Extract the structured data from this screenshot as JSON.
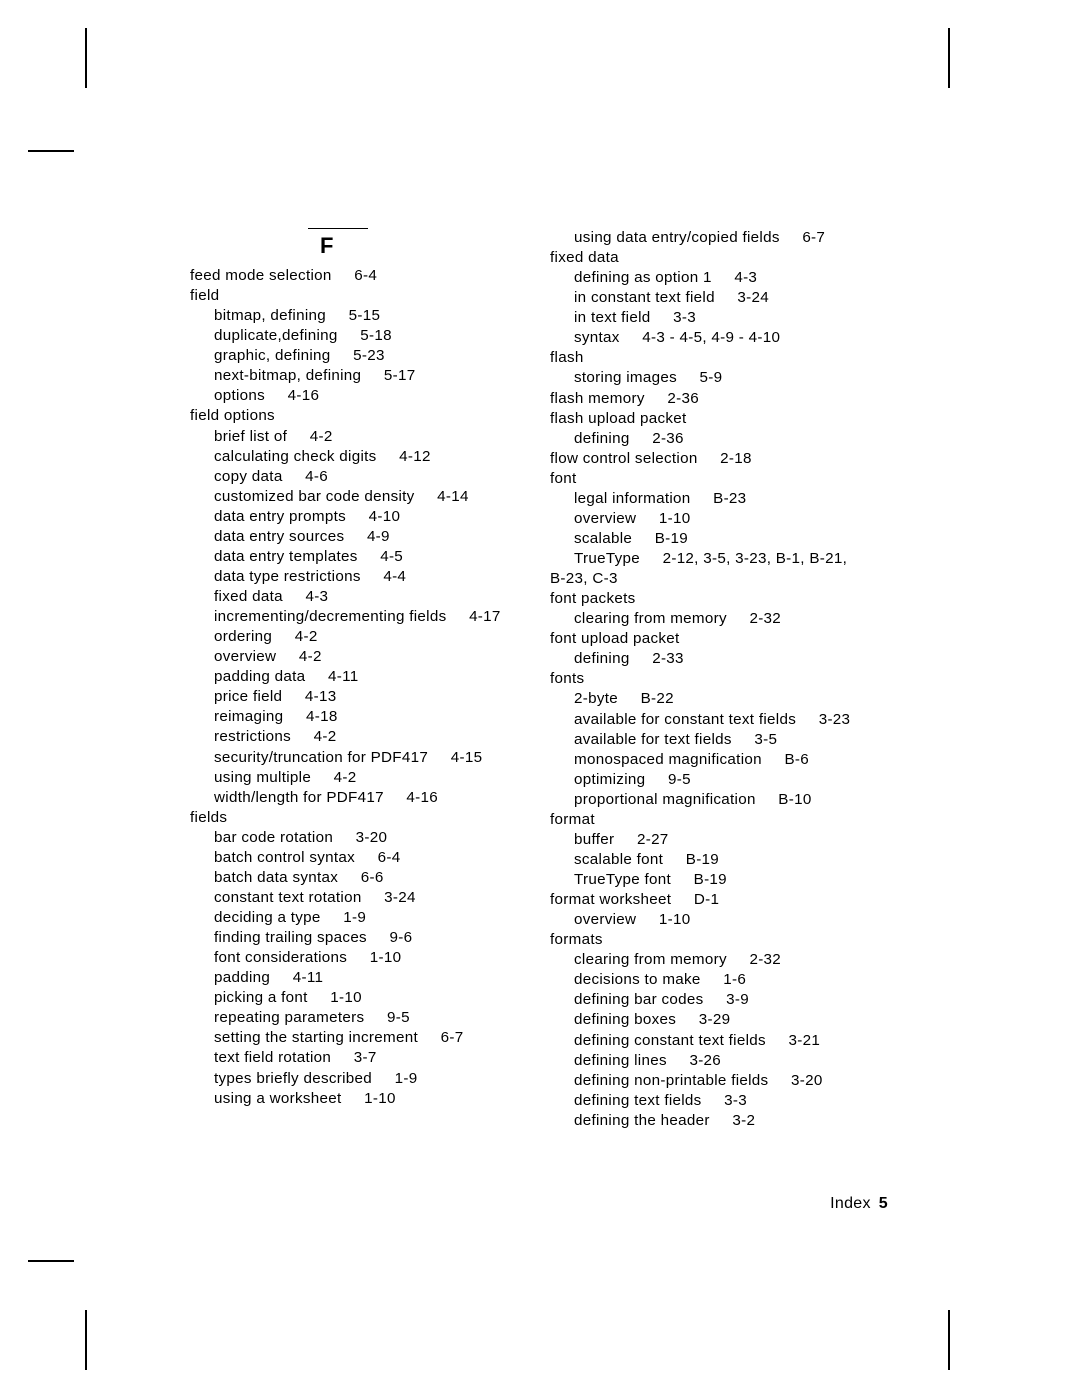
{
  "section_letter": "F",
  "footer": {
    "label": "Index",
    "page": "5"
  },
  "left_column": [
    {
      "lvl": 0,
      "term": "feed mode selection",
      "ref": "6-4"
    },
    {
      "lvl": 0,
      "term": "field",
      "ref": ""
    },
    {
      "lvl": 1,
      "term": "bitmap, defining",
      "ref": "5-15"
    },
    {
      "lvl": 1,
      "term": "duplicate,defining",
      "ref": "5-18"
    },
    {
      "lvl": 1,
      "term": "graphic, defining",
      "ref": "5-23"
    },
    {
      "lvl": 1,
      "term": "next-bitmap, defining",
      "ref": "5-17"
    },
    {
      "lvl": 1,
      "term": "options",
      "ref": "4-16"
    },
    {
      "lvl": 0,
      "term": "field options",
      "ref": ""
    },
    {
      "lvl": 1,
      "term": "brief list of",
      "ref": "4-2"
    },
    {
      "lvl": 1,
      "term": "calculating check digits",
      "ref": "4-12"
    },
    {
      "lvl": 1,
      "term": "copy data",
      "ref": "4-6"
    },
    {
      "lvl": 1,
      "term": "customized bar code density",
      "ref": "4-14"
    },
    {
      "lvl": 1,
      "term": "data entry prompts",
      "ref": "4-10"
    },
    {
      "lvl": 1,
      "term": "data entry sources",
      "ref": "4-9"
    },
    {
      "lvl": 1,
      "term": "data entry templates",
      "ref": "4-5"
    },
    {
      "lvl": 1,
      "term": "data type restrictions",
      "ref": "4-4"
    },
    {
      "lvl": 1,
      "term": "fixed data",
      "ref": "4-3"
    },
    {
      "lvl": 1,
      "term": "incrementing/decrementing fields",
      "ref": "4-17"
    },
    {
      "lvl": 1,
      "term": "ordering",
      "ref": "4-2"
    },
    {
      "lvl": 1,
      "term": "overview",
      "ref": "4-2"
    },
    {
      "lvl": 1,
      "term": "padding data",
      "ref": "4-11"
    },
    {
      "lvl": 1,
      "term": "price field",
      "ref": "4-13"
    },
    {
      "lvl": 1,
      "term": "reimaging",
      "ref": "4-18"
    },
    {
      "lvl": 1,
      "term": "restrictions",
      "ref": "4-2"
    },
    {
      "lvl": 1,
      "term": "security/truncation for PDF417",
      "ref": "4-15"
    },
    {
      "lvl": 1,
      "term": "using multiple",
      "ref": "4-2"
    },
    {
      "lvl": 1,
      "term": "width/length for PDF417",
      "ref": "4-16"
    },
    {
      "lvl": 0,
      "term": "fields",
      "ref": ""
    },
    {
      "lvl": 1,
      "term": "bar code rotation",
      "ref": "3-20"
    },
    {
      "lvl": 1,
      "term": "batch control syntax",
      "ref": "6-4"
    },
    {
      "lvl": 1,
      "term": "batch data syntax",
      "ref": "6-6"
    },
    {
      "lvl": 1,
      "term": "constant text rotation",
      "ref": "3-24"
    },
    {
      "lvl": 1,
      "term": "deciding a type",
      "ref": "1-9"
    },
    {
      "lvl": 1,
      "term": "finding trailing spaces",
      "ref": "9-6"
    },
    {
      "lvl": 1,
      "term": "font considerations",
      "ref": "1-10"
    },
    {
      "lvl": 1,
      "term": "padding",
      "ref": "4-11"
    },
    {
      "lvl": 1,
      "term": "picking a font",
      "ref": "1-10"
    },
    {
      "lvl": 1,
      "term": "repeating parameters",
      "ref": "9-5"
    },
    {
      "lvl": 1,
      "term": "setting the starting increment",
      "ref": "6-7"
    },
    {
      "lvl": 1,
      "term": "text field rotation",
      "ref": "3-7"
    },
    {
      "lvl": 1,
      "term": "types briefly described",
      "ref": "1-9"
    },
    {
      "lvl": 1,
      "term": "using a worksheet",
      "ref": "1-10"
    }
  ],
  "right_column": [
    {
      "lvl": 1,
      "term": "using data entry/copied fields",
      "ref": "6-7"
    },
    {
      "lvl": 0,
      "term": "fixed data",
      "ref": ""
    },
    {
      "lvl": 1,
      "term": "defining as option 1",
      "ref": "4-3"
    },
    {
      "lvl": 1,
      "term": "in constant text field",
      "ref": "3-24"
    },
    {
      "lvl": 1,
      "term": "in text field",
      "ref": "3-3"
    },
    {
      "lvl": 1,
      "term": "syntax",
      "ref": "4-3 - 4-5, 4-9 - 4-10"
    },
    {
      "lvl": 0,
      "term": "flash",
      "ref": ""
    },
    {
      "lvl": 1,
      "term": "storing images",
      "ref": "5-9"
    },
    {
      "lvl": 0,
      "term": "flash memory",
      "ref": "2-36"
    },
    {
      "lvl": 0,
      "term": "flash upload packet",
      "ref": ""
    },
    {
      "lvl": 1,
      "term": "defining",
      "ref": "2-36"
    },
    {
      "lvl": 0,
      "term": "flow control selection",
      "ref": "2-18"
    },
    {
      "lvl": 0,
      "term": "font",
      "ref": ""
    },
    {
      "lvl": 1,
      "term": "legal information",
      "ref": "B-23"
    },
    {
      "lvl": 1,
      "term": "overview",
      "ref": "1-10"
    },
    {
      "lvl": 1,
      "term": "scalable",
      "ref": "B-19"
    },
    {
      "lvl": 1,
      "term": "TrueType",
      "ref": "2-12, 3-5, 3-23, B-1, B-21,"
    },
    {
      "lvl": 0,
      "term": "B-23, C-3",
      "ref": ""
    },
    {
      "lvl": 0,
      "term": "font packets",
      "ref": ""
    },
    {
      "lvl": 1,
      "term": "clearing from memory",
      "ref": "2-32"
    },
    {
      "lvl": 0,
      "term": "font upload packet",
      "ref": ""
    },
    {
      "lvl": 1,
      "term": "defining",
      "ref": "2-33"
    },
    {
      "lvl": 0,
      "term": "fonts",
      "ref": ""
    },
    {
      "lvl": 1,
      "term": "2-byte",
      "ref": "B-22"
    },
    {
      "lvl": 1,
      "term": "available for constant text fields",
      "ref": "3-23"
    },
    {
      "lvl": 1,
      "term": "available for text fields",
      "ref": "3-5"
    },
    {
      "lvl": 1,
      "term": "monospaced magnification",
      "ref": "B-6"
    },
    {
      "lvl": 1,
      "term": "optimizing",
      "ref": "9-5"
    },
    {
      "lvl": 1,
      "term": "proportional magnification",
      "ref": "B-10"
    },
    {
      "lvl": 0,
      "term": "format",
      "ref": ""
    },
    {
      "lvl": 1,
      "term": "buffer",
      "ref": "2-27"
    },
    {
      "lvl": 1,
      "term": "scalable font",
      "ref": "B-19"
    },
    {
      "lvl": 1,
      "term": "TrueType font",
      "ref": "B-19"
    },
    {
      "lvl": 0,
      "term": "format worksheet",
      "ref": "D-1"
    },
    {
      "lvl": 1,
      "term": "overview",
      "ref": "1-10"
    },
    {
      "lvl": 0,
      "term": "formats",
      "ref": ""
    },
    {
      "lvl": 1,
      "term": "clearing from memory",
      "ref": "2-32"
    },
    {
      "lvl": 1,
      "term": "decisions to make",
      "ref": "1-6"
    },
    {
      "lvl": 1,
      "term": "defining bar codes",
      "ref": "3-9"
    },
    {
      "lvl": 1,
      "term": "defining boxes",
      "ref": "3-29"
    },
    {
      "lvl": 1,
      "term": "defining constant text fields",
      "ref": "3-21"
    },
    {
      "lvl": 1,
      "term": "defining lines",
      "ref": "3-26"
    },
    {
      "lvl": 1,
      "term": "defining non-printable fields",
      "ref": "3-20"
    },
    {
      "lvl": 1,
      "term": "defining text fields",
      "ref": "3-3"
    },
    {
      "lvl": 1,
      "term": "defining the header",
      "ref": "3-2"
    }
  ]
}
